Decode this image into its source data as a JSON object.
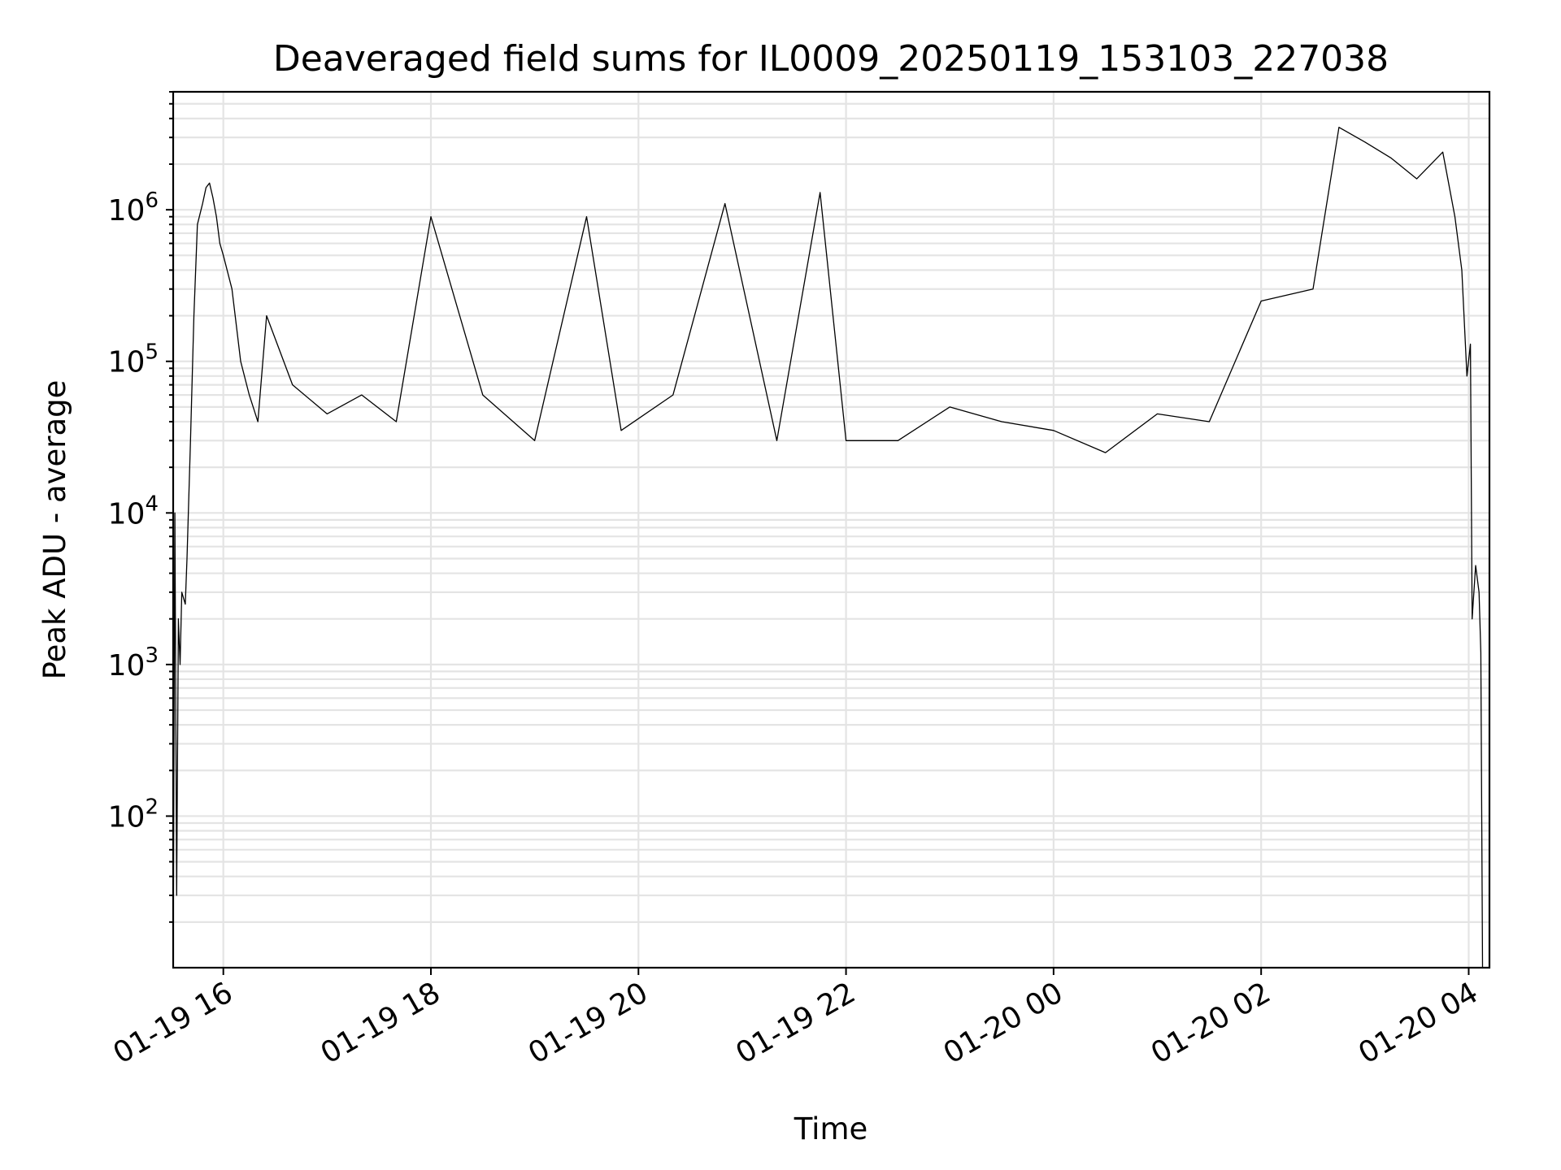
{
  "chart_data": {
    "type": "line",
    "title": "Deaveraged field sums for IL0009_20250119_153103_227038",
    "xlabel": "Time",
    "ylabel": "Peak ADU - average",
    "y_scale": "log",
    "grid": true,
    "grid_minor": true,
    "xlim": [
      "2025-01-19T15:31",
      "2025-01-20T04:12"
    ],
    "ylim": [
      10,
      6000000
    ],
    "x_ticks": [
      {
        "value": "2025-01-19T16:00",
        "label": "01-19 16"
      },
      {
        "value": "2025-01-19T18:00",
        "label": "01-19 18"
      },
      {
        "value": "2025-01-19T20:00",
        "label": "01-19 20"
      },
      {
        "value": "2025-01-19T22:00",
        "label": "01-19 22"
      },
      {
        "value": "2025-01-20T00:00",
        "label": "01-20 00"
      },
      {
        "value": "2025-01-20T02:00",
        "label": "01-20 02"
      },
      {
        "value": "2025-01-20T04:00",
        "label": "01-20 04"
      }
    ],
    "y_ticks": [
      {
        "value": 100,
        "base": "10",
        "exp": "2"
      },
      {
        "value": 1000,
        "base": "10",
        "exp": "3"
      },
      {
        "value": 10000,
        "base": "10",
        "exp": "4"
      },
      {
        "value": 100000,
        "base": "10",
        "exp": "5"
      },
      {
        "value": 1000000,
        "base": "10",
        "exp": "6"
      }
    ],
    "series": [
      {
        "color": "#000000",
        "points": [
          [
            "2025-01-19T15:31",
            10
          ],
          [
            "2025-01-19T15:32",
            10000
          ],
          [
            "2025-01-19T15:33",
            30
          ],
          [
            "2025-01-19T15:34",
            2000
          ],
          [
            "2025-01-19T15:35",
            1000
          ],
          [
            "2025-01-19T15:36",
            3000
          ],
          [
            "2025-01-19T15:38",
            2500
          ],
          [
            "2025-01-19T15:39",
            5000
          ],
          [
            "2025-01-19T15:41",
            30000
          ],
          [
            "2025-01-19T15:43",
            200000
          ],
          [
            "2025-01-19T15:45",
            800000
          ],
          [
            "2025-01-19T15:48",
            1100000
          ],
          [
            "2025-01-19T15:50",
            1400000
          ],
          [
            "2025-01-19T15:52",
            1500000
          ],
          [
            "2025-01-19T15:54",
            1200000
          ],
          [
            "2025-01-19T15:56",
            900000
          ],
          [
            "2025-01-19T15:58",
            600000
          ],
          [
            "2025-01-19T16:00",
            500000
          ],
          [
            "2025-01-19T16:05",
            300000
          ],
          [
            "2025-01-19T16:10",
            100000
          ],
          [
            "2025-01-19T16:15",
            60000
          ],
          [
            "2025-01-19T16:20",
            40000
          ],
          [
            "2025-01-19T16:25",
            200000
          ],
          [
            "2025-01-19T16:40",
            70000
          ],
          [
            "2025-01-19T17:00",
            45000
          ],
          [
            "2025-01-19T17:20",
            60000
          ],
          [
            "2025-01-19T17:40",
            40000
          ],
          [
            "2025-01-19T18:00",
            900000
          ],
          [
            "2025-01-19T18:30",
            60000
          ],
          [
            "2025-01-19T19:00",
            30000
          ],
          [
            "2025-01-19T19:30",
            900000
          ],
          [
            "2025-01-19T19:50",
            35000
          ],
          [
            "2025-01-19T20:20",
            60000
          ],
          [
            "2025-01-19T20:50",
            1100000
          ],
          [
            "2025-01-19T21:20",
            30000
          ],
          [
            "2025-01-19T21:45",
            1300000
          ],
          [
            "2025-01-19T22:00",
            30000
          ],
          [
            "2025-01-19T22:30",
            30000
          ],
          [
            "2025-01-19T23:00",
            50000
          ],
          [
            "2025-01-19T23:30",
            40000
          ],
          [
            "2025-01-20T00:00",
            35000
          ],
          [
            "2025-01-20T00:30",
            25000
          ],
          [
            "2025-01-20T01:00",
            45000
          ],
          [
            "2025-01-20T01:30",
            40000
          ],
          [
            "2025-01-20T02:00",
            250000
          ],
          [
            "2025-01-20T02:30",
            300000
          ],
          [
            "2025-01-20T02:45",
            3500000
          ],
          [
            "2025-01-20T03:00",
            2800000
          ],
          [
            "2025-01-20T03:15",
            2200000
          ],
          [
            "2025-01-20T03:30",
            1600000
          ],
          [
            "2025-01-20T03:45",
            2400000
          ],
          [
            "2025-01-20T03:52",
            900000
          ],
          [
            "2025-01-20T03:56",
            400000
          ],
          [
            "2025-01-20T03:59",
            80000
          ],
          [
            "2025-01-20T04:01",
            130000
          ],
          [
            "2025-01-20T04:02",
            2000
          ],
          [
            "2025-01-20T04:04",
            4500
          ],
          [
            "2025-01-20T04:06",
            3000
          ],
          [
            "2025-01-20T04:07",
            1200
          ],
          [
            "2025-01-20T04:08",
            10
          ]
        ]
      }
    ]
  }
}
